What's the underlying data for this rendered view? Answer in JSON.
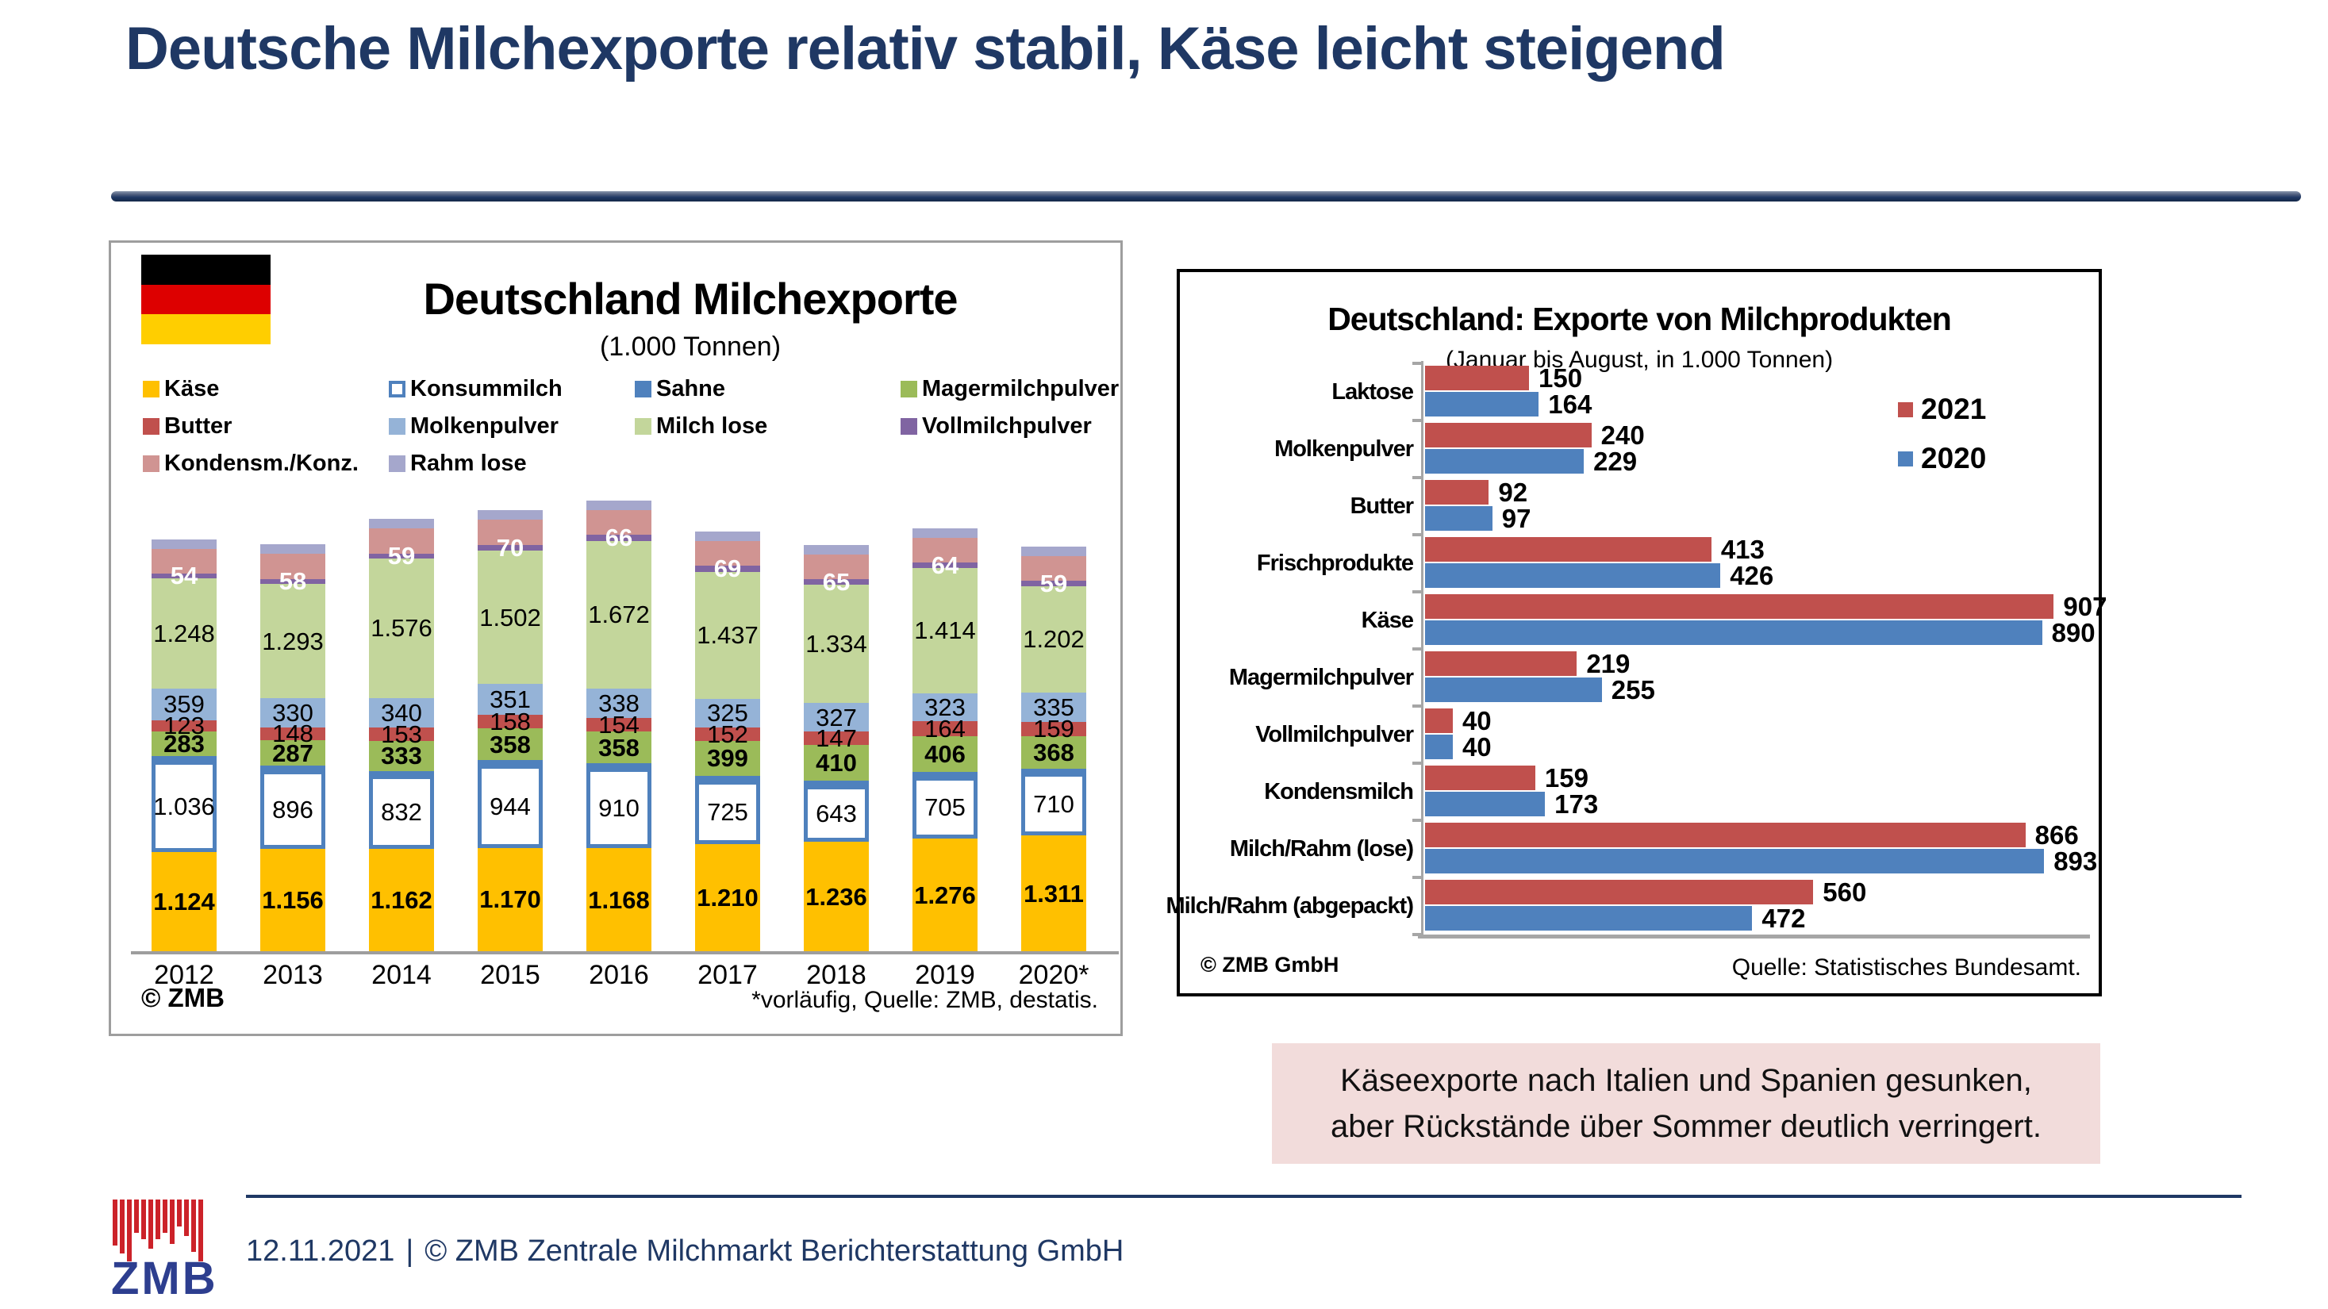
{
  "slide": {
    "title": "Deutsche Milchexporte relativ stabil, Käse leicht steigend",
    "accent_color": "#1F3864"
  },
  "chart_data": [
    {
      "type": "bar",
      "variant": "stacked-vertical",
      "title": "Deutschland Milchexporte",
      "subtitle": "(1.000 Tonnen)",
      "flag_icon_colors": [
        "#000000",
        "#DD0000",
        "#FFCE00"
      ],
      "categories": [
        "2012",
        "2013",
        "2014",
        "2015",
        "2016",
        "2017",
        "2018",
        "2019",
        "2020*"
      ],
      "series": [
        {
          "name": "Käse",
          "color": "#FFC000",
          "bold_labels": true,
          "values": [
            1124,
            1156,
            1162,
            1170,
            1168,
            1210,
            1236,
            1276,
            1311
          ],
          "labels": [
            "1.124",
            "1.156",
            "1.162",
            "1.170",
            "1.168",
            "1.210",
            "1.236",
            "1.276",
            "1.311"
          ]
        },
        {
          "name": "Konsummilch",
          "color": "#FFFFFF",
          "border_color": "#4F81BD",
          "values": [
            1036,
            896,
            832,
            944,
            910,
            725,
            643,
            705,
            710
          ],
          "labels": [
            "1.036",
            "896",
            "832",
            "944",
            "910",
            "725",
            "643",
            "705",
            "710"
          ]
        },
        {
          "name": "Sahne",
          "color": "#4F81BD",
          "values": [
            50,
            50,
            50,
            50,
            50,
            50,
            50,
            50,
            50
          ],
          "labels": null
        },
        {
          "name": "Magermilchpulver",
          "color": "#9BBB59",
          "bold_labels": true,
          "values": [
            283,
            287,
            333,
            358,
            358,
            399,
            410,
            406,
            368
          ],
          "labels": [
            "283",
            "287",
            "333",
            "358",
            "358",
            "399",
            "410",
            "406",
            "368"
          ]
        },
        {
          "name": "Butter",
          "color": "#C0504D",
          "values": [
            123,
            148,
            153,
            158,
            154,
            152,
            147,
            164,
            159
          ],
          "labels": [
            "123",
            "148",
            "153",
            "158",
            "154",
            "152",
            "147",
            "164",
            "159"
          ]
        },
        {
          "name": "Molkenpulver",
          "color": "#95B3D7",
          "values": [
            359,
            330,
            340,
            351,
            338,
            325,
            327,
            323,
            335
          ],
          "labels": [
            "359",
            "330",
            "340",
            "351",
            "338",
            "325",
            "327",
            "323",
            "335"
          ]
        },
        {
          "name": "Milch lose",
          "color": "#C3D69B",
          "values": [
            1248,
            1293,
            1576,
            1502,
            1672,
            1437,
            1334,
            1414,
            1202
          ],
          "labels": [
            "1.248",
            "1.293",
            "1.576",
            "1.502",
            "1.672",
            "1.437",
            "1.334",
            "1.414",
            "1.202"
          ]
        },
        {
          "name": "Vollmilchpulver",
          "color": "#8064A2",
          "bold_labels": true,
          "label_color": "#FFFFFF",
          "values": [
            54,
            58,
            59,
            70,
            66,
            69,
            65,
            64,
            59
          ],
          "labels": [
            "54",
            "58",
            "59",
            "70",
            "66",
            "69",
            "65",
            "64",
            "59"
          ]
        },
        {
          "name": "Kondensm./Konz.",
          "color": "#D09492",
          "values": [
            280,
            280,
            280,
            280,
            280,
            280,
            280,
            280,
            280
          ],
          "labels": null
        },
        {
          "name": "Rahm lose",
          "color": "#A5A7CC",
          "values": [
            110,
            110,
            110,
            110,
            110,
            110,
            110,
            110,
            110
          ],
          "labels": null
        }
      ],
      "legend": [
        {
          "label": "Käse",
          "color": "#FFC000"
        },
        {
          "label": "Konsummilch",
          "color": "#FFFFFF",
          "border": "#4F81BD"
        },
        {
          "label": "Sahne",
          "color": "#4F81BD"
        },
        {
          "label": "Magermilchpulver",
          "color": "#9BBB59"
        },
        {
          "label": "Butter",
          "color": "#C0504D"
        },
        {
          "label": "Molkenpulver",
          "color": "#95B3D7"
        },
        {
          "label": "Milch lose",
          "color": "#C3D69B"
        },
        {
          "label": "Vollmilchpulver",
          "color": "#8064A2"
        },
        {
          "label": "Kondensm./Konz.",
          "color": "#D09492"
        },
        {
          "label": "Rahm lose",
          "color": "#A5A7CC"
        }
      ],
      "footer_left": "© ZMB",
      "footer_right": "*vorläufig, Quelle: ZMB, destatis."
    },
    {
      "type": "bar",
      "variant": "grouped-horizontal",
      "title": "Deutschland: Exporte von Milchprodukten",
      "subtitle": "(Januar bis August, in 1.000 Tonnen)",
      "categories": [
        "Laktose",
        "Molkenpulver",
        "Butter",
        "Frischprodukte",
        "Käse",
        "Magermilchpulver",
        "Vollmilchpulver",
        "Kondensmilch",
        "Milch/Rahm (lose)",
        "Milch/Rahm (abgepackt)"
      ],
      "series": [
        {
          "name": "2021",
          "color": "#C0504D",
          "values": [
            150,
            240,
            92,
            413,
            907,
            219,
            40,
            159,
            866,
            560
          ]
        },
        {
          "name": "2020",
          "color": "#4F81BD",
          "values": [
            164,
            229,
            97,
            426,
            890,
            255,
            40,
            173,
            893,
            472
          ]
        }
      ],
      "xlim": [
        0,
        950
      ],
      "legend_position": "right",
      "footer_left": "© ZMB GmbH",
      "footer_right": "Quelle: Statistisches Bundesamt."
    }
  ],
  "callout": {
    "lines": [
      "Käseexporte nach Italien und Spanien gesunken,",
      "aber Rückstände über Sommer deutlich verringert."
    ],
    "background": "#F2DCDB"
  },
  "footer": {
    "date": "12.11.2021",
    "separator": "|",
    "copyright": "© ZMB Zentrale Milchmarkt Berichterstattung GmbH",
    "logo_text": "ZMB",
    "logo_bar_color": "#CC2229",
    "logo_text_color": "#2D3E8F"
  }
}
